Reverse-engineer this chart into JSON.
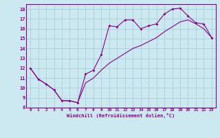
{
  "xlabel": "Windchill (Refroidissement éolien,°C)",
  "bg_color": "#cce8f0",
  "grid_color": "#aacfda",
  "line_color": "#880088",
  "xlim": [
    -0.5,
    23.5
  ],
  "ylim": [
    8,
    18.5
  ],
  "xticks": [
    0,
    1,
    2,
    3,
    4,
    5,
    6,
    7,
    8,
    9,
    10,
    11,
    12,
    13,
    14,
    15,
    16,
    17,
    18,
    19,
    20,
    21,
    22,
    23
  ],
  "yticks": [
    8,
    9,
    10,
    11,
    12,
    13,
    14,
    15,
    16,
    17,
    18
  ],
  "line1_x": [
    0,
    1,
    2,
    3,
    4,
    5,
    6,
    7,
    8,
    9,
    10,
    11,
    12,
    13,
    14,
    15,
    16,
    17,
    18,
    19,
    20,
    21,
    22,
    23
  ],
  "line1_y": [
    12,
    10.9,
    10.4,
    9.8,
    8.7,
    8.7,
    8.5,
    11.4,
    11.8,
    13.4,
    16.3,
    16.2,
    16.9,
    16.9,
    16.0,
    16.3,
    16.5,
    17.5,
    18.0,
    18.1,
    17.3,
    16.6,
    16.5,
    15.1
  ],
  "line2_x": [
    0,
    1,
    2,
    3,
    4,
    5,
    6,
    7,
    8,
    9,
    10,
    11,
    12,
    13,
    14,
    15,
    16,
    17,
    18,
    19,
    20,
    21,
    22,
    23
  ],
  "line2_y": [
    12,
    10.9,
    10.4,
    9.8,
    8.7,
    8.7,
    8.5,
    10.5,
    11.0,
    11.8,
    12.5,
    13.0,
    13.5,
    14.0,
    14.3,
    14.7,
    15.1,
    15.7,
    16.2,
    16.7,
    16.9,
    16.5,
    16.0,
    15.1
  ]
}
